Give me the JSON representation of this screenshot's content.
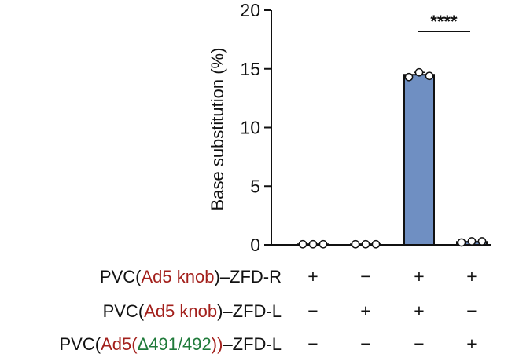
{
  "chart_data": {
    "type": "bar",
    "ylabel": "Base substitution (%)",
    "ylim": [
      0,
      20
    ],
    "yticks": [
      "0",
      "5",
      "10",
      "15",
      "20"
    ],
    "bar_color": "#6f8fc2",
    "significance": {
      "label": "****",
      "between": [
        3,
        4
      ]
    },
    "groups": [
      {
        "mean": 0.05,
        "points": [
          0.05,
          0.05,
          0.05
        ]
      },
      {
        "mean": 0.05,
        "points": [
          0.05,
          0.05,
          0.05
        ]
      },
      {
        "mean": 14.5,
        "points": [
          14.3,
          14.7,
          14.4
        ]
      },
      {
        "mean": 0.25,
        "points": [
          0.2,
          0.3,
          0.3
        ]
      }
    ],
    "conditions": [
      {
        "parts": [
          {
            "text": "PVC(",
            "color": ""
          },
          {
            "text": "Ad5 knob",
            "color": "red"
          },
          {
            "text": ")–ZFD-R",
            "color": ""
          }
        ],
        "signs": [
          "+",
          "−",
          "+",
          "+"
        ]
      },
      {
        "parts": [
          {
            "text": "PVC(",
            "color": ""
          },
          {
            "text": "Ad5 knob",
            "color": "red"
          },
          {
            "text": ")–ZFD-L",
            "color": ""
          }
        ],
        "signs": [
          "−",
          "+",
          "+",
          "−"
        ]
      },
      {
        "parts": [
          {
            "text": "PVC(",
            "color": ""
          },
          {
            "text": "Ad5(",
            "color": "red"
          },
          {
            "text": "Δ491/492",
            "color": "green"
          },
          {
            "text": "))",
            "color": "red"
          },
          {
            "text": "–ZFD-L",
            "color": ""
          }
        ],
        "signs": [
          "−",
          "−",
          "−",
          "+"
        ]
      }
    ]
  }
}
